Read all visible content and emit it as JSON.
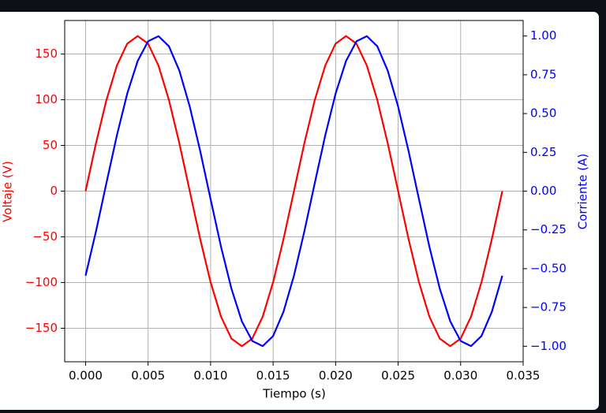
{
  "chart_data": {
    "type": "line",
    "xlabel": "Tiempo (s)",
    "ylabel": "Voltaje (V)",
    "y2label": "Corriente (A)",
    "x": [
      0,
      0.000833,
      0.001667,
      0.0025,
      0.003333,
      0.004167,
      0.005,
      0.005833,
      0.006667,
      0.0075,
      0.008333,
      0.009167,
      0.01,
      0.010833,
      0.011667,
      0.0125,
      0.013333,
      0.014167,
      0.015,
      0.015833,
      0.016667,
      0.0175,
      0.018333,
      0.019167,
      0.02,
      0.020833,
      0.021667,
      0.0225,
      0.023333,
      0.024167,
      0.025,
      0.025833,
      0.026667,
      0.0275,
      0.028333,
      0.029167,
      0.03,
      0.030833,
      0.031667,
      0.0325,
      0.033333
    ],
    "series": [
      {
        "color": "#ff0000",
        "values": [
          0,
          52.4,
          99.7,
          137.3,
          161.4,
          169.7,
          161.4,
          137.3,
          99.7,
          52.4,
          0,
          -52.4,
          -99.7,
          -137.3,
          -161.4,
          -169.7,
          -161.4,
          -137.3,
          -99.7,
          -52.4,
          0,
          52.4,
          99.7,
          137.3,
          161.4,
          169.7,
          161.4,
          137.3,
          99.7,
          52.4,
          0,
          -52.4,
          -99.7,
          -137.3,
          -161.4,
          -169.7,
          -161.4,
          -137.3,
          -99.7,
          -52.4,
          0
        ]
      },
      {
        "color": "#0000ff",
        "axis": "y2",
        "values": [
          -0.545,
          -0.259,
          0.052,
          0.358,
          0.629,
          0.839,
          0.966,
          0.999,
          0.934,
          0.777,
          0.545,
          0.259,
          -0.052,
          -0.358,
          -0.629,
          -0.839,
          -0.966,
          -0.999,
          -0.934,
          -0.777,
          -0.545,
          -0.259,
          0.052,
          0.358,
          0.629,
          0.839,
          0.966,
          0.999,
          0.934,
          0.777,
          0.545,
          0.259,
          -0.052,
          -0.358,
          -0.629,
          -0.839,
          -0.966,
          -0.999,
          -0.934,
          -0.777,
          -0.545
        ]
      }
    ],
    "xlim": [
      -0.00167,
      0.035
    ],
    "xticks": [
      {
        "value": 0,
        "label": "0.000"
      },
      {
        "value": 0.005,
        "label": "0.005"
      },
      {
        "value": 0.01,
        "label": "0.010"
      },
      {
        "value": 0.015,
        "label": "0.015"
      },
      {
        "value": 0.02,
        "label": "0.020"
      },
      {
        "value": 0.025,
        "label": "0.025"
      },
      {
        "value": 0.03,
        "label": "0.030"
      },
      {
        "value": 0.035,
        "label": "0.035"
      }
    ],
    "ylim": [
      -186.7,
      186.7
    ],
    "yticks": [
      {
        "value": -150,
        "label": "−150"
      },
      {
        "value": -100,
        "label": "−100"
      },
      {
        "value": -50,
        "label": "−50"
      },
      0,
      50,
      100,
      150
    ],
    "y2lim": [
      -1.1,
      1.1
    ],
    "y2ticks": [
      {
        "value": -1,
        "label": "−1.00"
      },
      {
        "value": -0.75,
        "label": "−0.75"
      },
      {
        "value": -0.5,
        "label": "−0.50"
      },
      {
        "value": -0.25,
        "label": "−0.25"
      },
      {
        "value": 0,
        "label": "0.00"
      },
      {
        "value": 0.25,
        "label": "0.25"
      },
      {
        "value": 0.5,
        "label": "0.50"
      },
      {
        "value": 0.75,
        "label": "0.75"
      },
      {
        "value": 1,
        "label": "1.00"
      }
    ],
    "grid": true
  }
}
